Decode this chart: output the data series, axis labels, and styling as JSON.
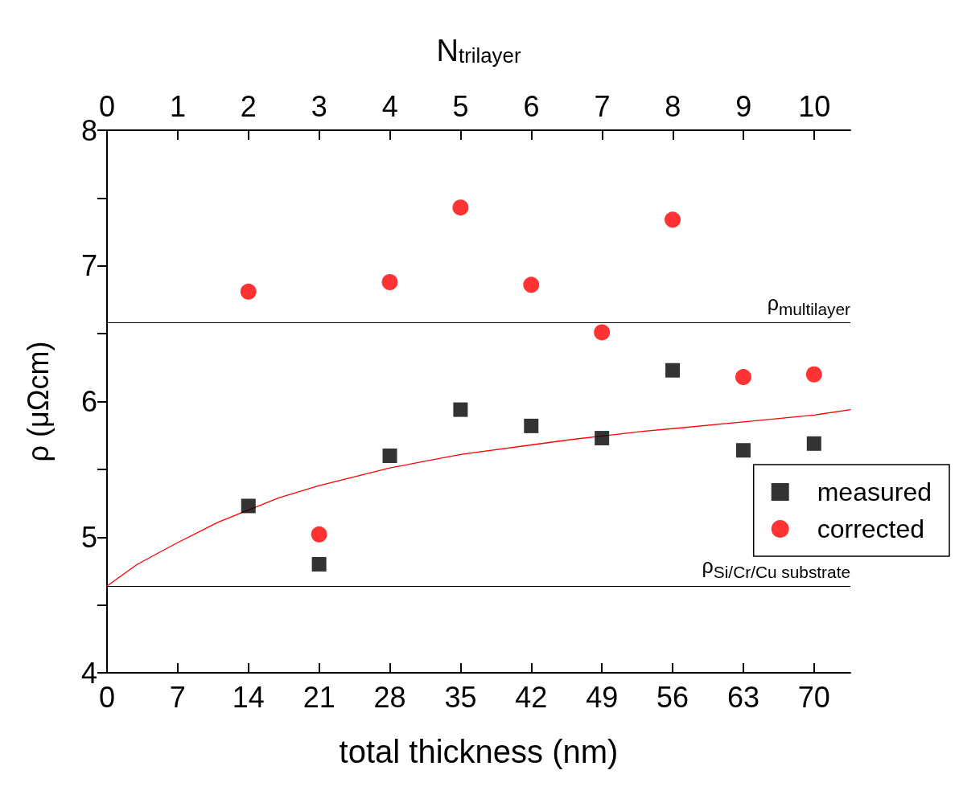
{
  "chart_data": {
    "type": "scatter",
    "xlabel": "total thickness (nm)",
    "ylabel": "ρ (μΩcm)",
    "x2label": "N$_{trilayer}$",
    "xlim": [
      0,
      73.6
    ],
    "xticks": [
      0,
      7,
      14,
      21,
      28,
      35,
      42,
      49,
      56,
      63,
      70
    ],
    "x2lim": [
      0,
      10.51
    ],
    "x2ticks": [
      0,
      1,
      2,
      3,
      4,
      5,
      6,
      7,
      8,
      9,
      10
    ],
    "ylim": [
      4,
      8
    ],
    "yticks": [
      4,
      {
        "value": 4.5,
        "label": null
      },
      5,
      {
        "value": 5.5,
        "label": null
      },
      6,
      {
        "value": 6.5,
        "label": null
      },
      7,
      {
        "value": 7.5,
        "label": null
      },
      8
    ],
    "grid": false,
    "legend": "right",
    "series": [
      {
        "name": "measured",
        "type": "scatter",
        "marker": "square",
        "color": "#000000",
        "x": [
          14,
          21,
          28,
          35,
          42,
          49,
          56,
          63,
          70
        ],
        "values": [
          5.23,
          4.8,
          5.6,
          5.94,
          5.82,
          5.73,
          6.23,
          5.64,
          5.69
        ]
      },
      {
        "name": "corrected",
        "type": "scatter",
        "marker": "circle",
        "color": "#ff0000",
        "x": [
          14,
          21,
          28,
          35,
          42,
          49,
          56,
          63,
          70
        ],
        "values": [
          6.81,
          5.02,
          6.88,
          7.43,
          6.86,
          6.51,
          7.34,
          6.18,
          6.2
        ]
      },
      {
        "type": "line",
        "marker": "none",
        "color": "#ff0000",
        "x": [
          0,
          3,
          7,
          11,
          17,
          21,
          28,
          35,
          42,
          46,
          53,
          56,
          63,
          70,
          73.6
        ],
        "values": [
          4.64,
          4.8,
          4.96,
          5.11,
          5.29,
          5.38,
          5.51,
          5.61,
          5.68,
          5.72,
          5.78,
          5.8,
          5.85,
          5.9,
          5.94
        ]
      }
    ],
    "ref_lines": [
      {
        "axis": "y",
        "value": 6.58,
        "label": "ρ$_{multilayer}$",
        "color": "#000000"
      },
      {
        "axis": "y",
        "value": 4.64,
        "label": "ρ$_{Si/Cr/Cu substrate}$",
        "color": "#000000"
      }
    ]
  }
}
